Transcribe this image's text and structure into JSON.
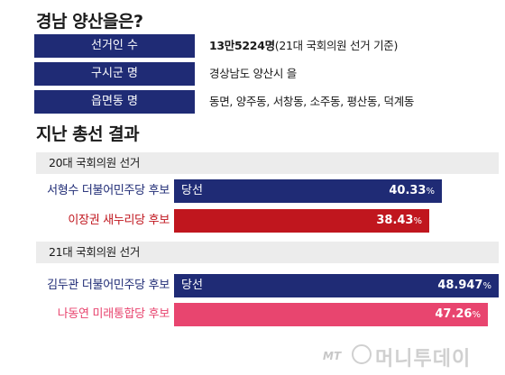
{
  "title": "경남 양산을은?",
  "info": [
    {
      "label": "선거인 수",
      "value_bold": "13만5224명",
      "value_rest": "(21대 국회의원 선거 기준)"
    },
    {
      "label": "구시군 명",
      "value_bold": "",
      "value_rest": "경상남도 양산시 을"
    },
    {
      "label": "읍면동 명",
      "value_bold": "",
      "value_rest": "동면, 양주동, 서창동, 소주동, 평산동, 덕계동"
    }
  ],
  "section_title": "지난 총선 결과",
  "win_label": "당선",
  "percent_sign": "%",
  "colors": {
    "navy": "#1f2b75",
    "red": "#c0161e",
    "pink": "#e8456f",
    "header_bg": "#ececec"
  },
  "logo": {
    "mt": "MT",
    "name": "머니투데이"
  },
  "chart_data": [
    {
      "type": "bar",
      "title": "20대 국회의원 선거",
      "categories": [
        "서형수 더불어민주당 후보",
        "이장권 새누리당 후보"
      ],
      "values": [
        40.33,
        38.43
      ],
      "value_labels": [
        "40.33",
        "38.43"
      ],
      "winner": [
        true,
        false
      ],
      "colors": [
        "#1f2b75",
        "#c0161e"
      ]
    },
    {
      "type": "bar",
      "title": "21대 국회의원 선거",
      "categories": [
        "김두관 더불어민주당 후보",
        "나동연 미래통합당 후보"
      ],
      "values": [
        48.947,
        47.26
      ],
      "value_labels": [
        "48.947",
        "47.26"
      ],
      "winner": [
        true,
        false
      ],
      "colors": [
        "#1f2b75",
        "#e8456f"
      ]
    }
  ]
}
